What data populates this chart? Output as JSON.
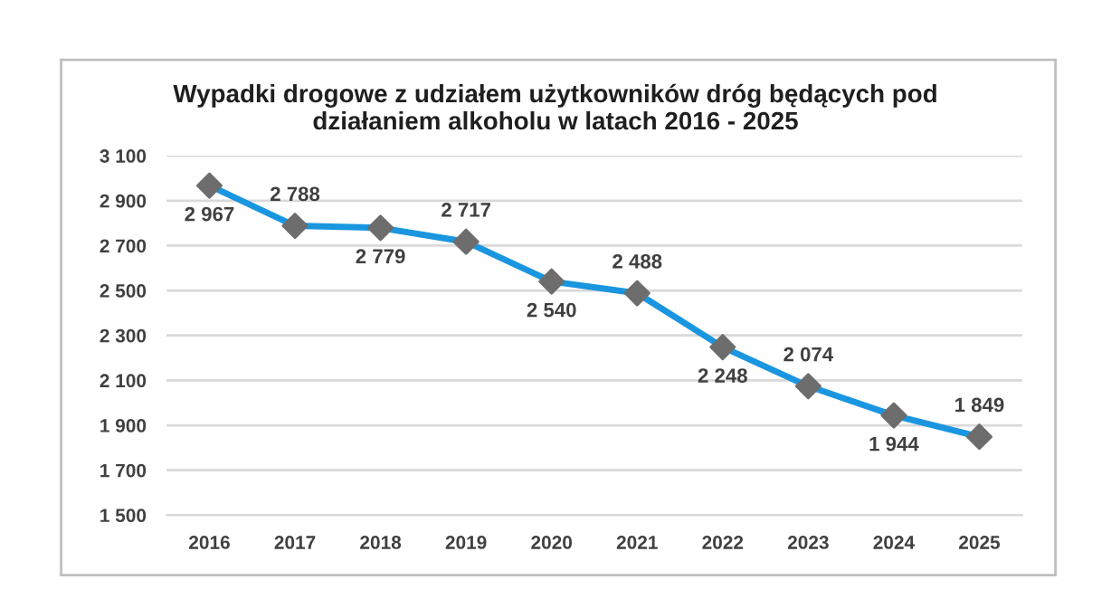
{
  "chart_data": {
    "type": "line",
    "title": "Wypadki drogowe z udziałem użytkowników dróg będących pod\ndziałaniem alkoholu w latach 2016 - 2025",
    "categories": [
      "2016",
      "2017",
      "2018",
      "2019",
      "2020",
      "2021",
      "2022",
      "2023",
      "2024",
      "2025"
    ],
    "series": [
      {
        "color": "#1a96e0",
        "colors": [
          "#6d6d6d",
          "#6d6d6d",
          "#6d6d6d",
          "#6d6d6d",
          "#6d6d6d",
          "#6d6d6d",
          "#6d6d6d",
          "#6d6d6d",
          "#6d6d6d",
          "#6d6d6d"
        ],
        "values": [
          2967,
          2788,
          2779,
          2717,
          2540,
          2488,
          2248,
          2074,
          1944,
          1849
        ],
        "value_labels": [
          "2 967",
          "2 788",
          "2 779",
          "2 717",
          "2 540",
          "2 488",
          "2 248",
          "2 074",
          "1 944",
          "1 849"
        ]
      }
    ],
    "marker": "diamond",
    "line_style": "solid",
    "ylim": [
      1500,
      3100
    ],
    "yticks": [
      {
        "value": 1500,
        "label": "1 500"
      },
      {
        "value": 1700,
        "label": "1 700"
      },
      {
        "value": 1900,
        "label": "1 900"
      },
      {
        "value": 2100,
        "label": "2 100"
      },
      {
        "value": 2300,
        "label": "2 300"
      },
      {
        "value": 2500,
        "label": "2 500"
      },
      {
        "value": 2700,
        "label": "2 700"
      },
      {
        "value": 2900,
        "label": "2 900"
      },
      {
        "value": 3100,
        "label": "3 100"
      }
    ],
    "grid": "y",
    "legend": false
  }
}
